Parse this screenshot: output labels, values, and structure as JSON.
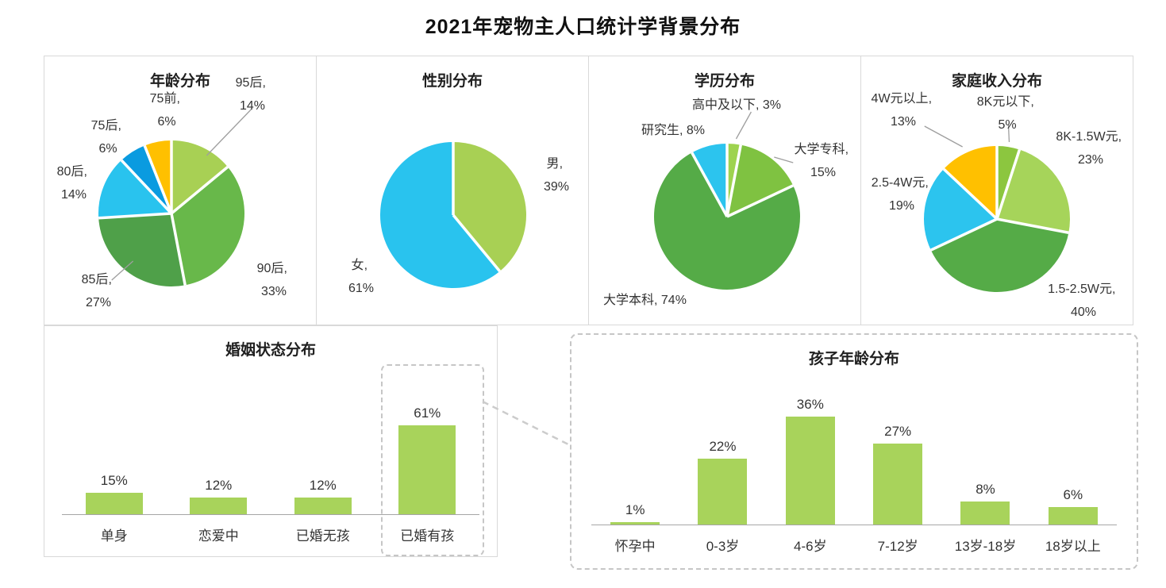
{
  "page_title": "2021年宠物主人口统计学背景分布",
  "chart_data": [
    {
      "type": "pie",
      "title": "年龄分布",
      "slices": [
        {
          "name": "95后",
          "pct": "14%",
          "value": 14,
          "color": "#a8d054"
        },
        {
          "name": "90后",
          "pct": "33%",
          "value": 33,
          "color": "#68b84a"
        },
        {
          "name": "85后",
          "pct": "27%",
          "value": 27,
          "color": "#4fa049"
        },
        {
          "name": "80后",
          "pct": "14%",
          "value": 14,
          "color": "#29c3ee"
        },
        {
          "name": "75后",
          "pct": "6%",
          "value": 6,
          "color": "#0a9be0"
        },
        {
          "name": "75前",
          "pct": "6%",
          "value": 6,
          "color": "#ffc000"
        }
      ]
    },
    {
      "type": "pie",
      "title": "性别分布",
      "slices": [
        {
          "name": "男",
          "pct": "39%",
          "value": 39,
          "color": "#a8d054"
        },
        {
          "name": "女",
          "pct": "61%",
          "value": 61,
          "color": "#29c3ee"
        }
      ]
    },
    {
      "type": "pie",
      "title": "学历分布",
      "slices": [
        {
          "name": "高中及以下",
          "pct": "3%",
          "value": 3,
          "color": "#9ed34f"
        },
        {
          "name": "大学专科",
          "pct": "15%",
          "value": 15,
          "color": "#7fc241"
        },
        {
          "name": "大学本科",
          "pct": "74%",
          "value": 74,
          "color": "#55ab47"
        },
        {
          "name": "研究生",
          "pct": "8%",
          "value": 8,
          "color": "#2cc4ee"
        }
      ]
    },
    {
      "type": "pie",
      "title": "家庭收入分布",
      "slices": [
        {
          "name": "8K元以下",
          "pct": "5%",
          "value": 5,
          "color": "#8cc63f"
        },
        {
          "name": "8K-1.5W元",
          "pct": "23%",
          "value": 23,
          "color": "#a6d45a"
        },
        {
          "name": "1.5-2.5W元",
          "pct": "40%",
          "value": 40,
          "color": "#55ab47"
        },
        {
          "name": "2.5-4W元",
          "pct": "19%",
          "value": 19,
          "color": "#2cc4ee"
        },
        {
          "name": "4W元以上",
          "pct": "13%",
          "value": 13,
          "color": "#ffc000"
        }
      ]
    },
    {
      "type": "bar",
      "title": "婚姻状态分布",
      "categories": [
        "单身",
        "恋爱中",
        "已婚无孩",
        "已婚有孩"
      ],
      "values": [
        15,
        12,
        12,
        61
      ],
      "labels": [
        "15%",
        "12%",
        "12%",
        "61%"
      ],
      "bar_color": "#a8d35b",
      "highlighted_category": "已婚有孩"
    },
    {
      "type": "bar",
      "title": "孩子年龄分布",
      "categories": [
        "怀孕中",
        "0-3岁",
        "4-6岁",
        "7-12岁",
        "13岁-18岁",
        "18岁以上"
      ],
      "values": [
        1,
        22,
        36,
        27,
        8,
        6
      ],
      "labels": [
        "1%",
        "22%",
        "36%",
        "27%",
        "8%",
        "6%"
      ],
      "bar_color": "#a8d35b"
    }
  ]
}
